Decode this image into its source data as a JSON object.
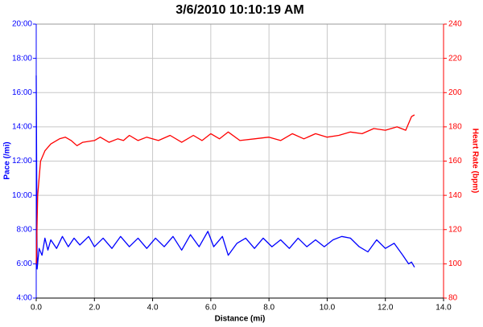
{
  "chart_data": {
    "type": "line",
    "title": "3/6/2010 10:10:19 AM",
    "x_label": "Distance (mi)",
    "y_label": "Pace (/mi)",
    "y2_label": "Heart Rate (bpm)",
    "xlim": [
      0,
      14
    ],
    "xticks": [
      {
        "value": 0,
        "label": "0.0"
      },
      {
        "value": 2,
        "label": "2.0"
      },
      {
        "value": 4,
        "label": "4.0"
      },
      {
        "value": 6,
        "label": "6.0"
      },
      {
        "value": 8,
        "label": "8.0"
      },
      {
        "value": 10,
        "label": "10.0"
      },
      {
        "value": 12,
        "label": "12.0"
      },
      {
        "value": 14,
        "label": "14.0"
      }
    ],
    "ylim": [
      4,
      20
    ],
    "yticks": [
      {
        "value": 4,
        "label": "4:00"
      },
      {
        "value": 6,
        "label": "6:00"
      },
      {
        "value": 8,
        "label": "8:00"
      },
      {
        "value": 10,
        "label": "10:00"
      },
      {
        "value": 12,
        "label": "12:00"
      },
      {
        "value": 14,
        "label": "14:00"
      },
      {
        "value": 16,
        "label": "16:00"
      },
      {
        "value": 18,
        "label": "18:00"
      },
      {
        "value": 20,
        "label": "20:00"
      }
    ],
    "y2lim": [
      80,
      240
    ],
    "y2ticks": [
      80,
      100,
      120,
      140,
      160,
      180,
      200,
      220,
      240
    ],
    "grid": true,
    "series": [
      {
        "name": "Pace",
        "color": "#0000ff",
        "x": [
          0,
          0.03,
          0.1,
          0.2,
          0.3,
          0.4,
          0.5,
          0.7,
          0.9,
          1.1,
          1.3,
          1.5,
          1.8,
          2.0,
          2.3,
          2.6,
          2.9,
          3.2,
          3.5,
          3.8,
          4.1,
          4.4,
          4.7,
          5.0,
          5.3,
          5.6,
          5.9,
          6.1,
          6.4,
          6.6,
          6.9,
          7.2,
          7.5,
          7.8,
          8.1,
          8.4,
          8.7,
          9.0,
          9.3,
          9.6,
          9.9,
          10.2,
          10.5,
          10.8,
          11.1,
          11.4,
          11.7,
          12.0,
          12.3,
          12.6,
          12.8,
          12.9,
          13.0
        ],
        "values": [
          17.0,
          5.7,
          6.9,
          6.5,
          7.5,
          6.8,
          7.4,
          6.9,
          7.6,
          7.0,
          7.5,
          7.1,
          7.6,
          7.0,
          7.5,
          6.9,
          7.6,
          7.0,
          7.5,
          6.9,
          7.5,
          7.0,
          7.6,
          6.8,
          7.7,
          7.0,
          7.9,
          7.0,
          7.6,
          6.5,
          7.2,
          7.5,
          6.9,
          7.5,
          7.0,
          7.4,
          6.9,
          7.5,
          7.0,
          7.4,
          7.0,
          7.4,
          7.6,
          7.5,
          7.0,
          6.7,
          7.4,
          6.9,
          7.2,
          6.5,
          6.0,
          6.1,
          5.8
        ]
      },
      {
        "name": "Heart Rate",
        "color": "#ff0000",
        "axis": "y2",
        "x": [
          0,
          0.05,
          0.15,
          0.3,
          0.5,
          0.8,
          1.0,
          1.2,
          1.4,
          1.6,
          2.0,
          2.2,
          2.5,
          2.8,
          3.0,
          3.2,
          3.5,
          3.8,
          4.2,
          4.6,
          5.0,
          5.4,
          5.7,
          6.0,
          6.3,
          6.6,
          7.0,
          7.5,
          8.0,
          8.4,
          8.8,
          9.2,
          9.6,
          10.0,
          10.4,
          10.8,
          11.2,
          11.6,
          12.0,
          12.4,
          12.7,
          12.9,
          13.0
        ],
        "values": [
          100,
          140,
          160,
          166,
          170,
          173,
          174,
          172,
          169,
          171,
          172,
          174,
          171,
          173,
          172,
          175,
          172,
          174,
          172,
          175,
          171,
          175,
          172,
          176,
          173,
          177,
          172,
          173,
          174,
          172,
          176,
          173,
          176,
          174,
          175,
          177,
          176,
          179,
          178,
          180,
          178,
          186,
          187
        ]
      }
    ]
  }
}
